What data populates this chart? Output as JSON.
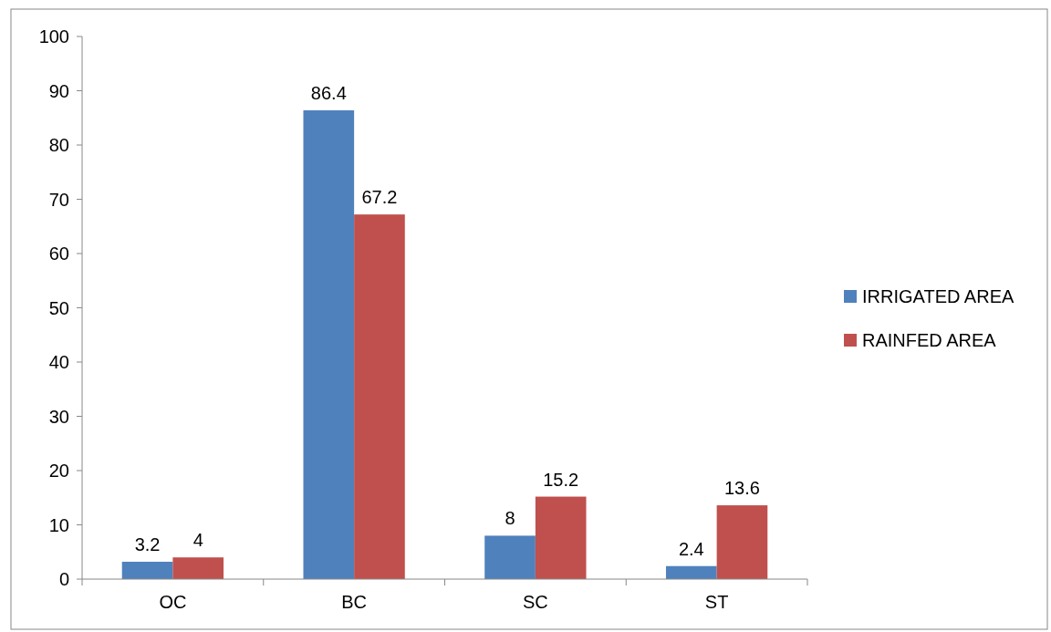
{
  "chart_data": {
    "type": "bar",
    "categories": [
      "OC",
      "BC",
      "SC",
      "ST"
    ],
    "series": [
      {
        "name": "IRRIGATED AREA",
        "color": "#4f81bd",
        "values": [
          3.2,
          86.4,
          8,
          2.4
        ]
      },
      {
        "name": "RAINFED AREA",
        "color": "#c0504d",
        "values": [
          4,
          67.2,
          15.2,
          13.6
        ]
      }
    ],
    "ylim": [
      0,
      100
    ],
    "yticks": [
      0,
      10,
      20,
      30,
      40,
      50,
      60,
      70,
      80,
      90,
      100
    ],
    "grid": false,
    "legend": "right",
    "data_labels": true
  }
}
